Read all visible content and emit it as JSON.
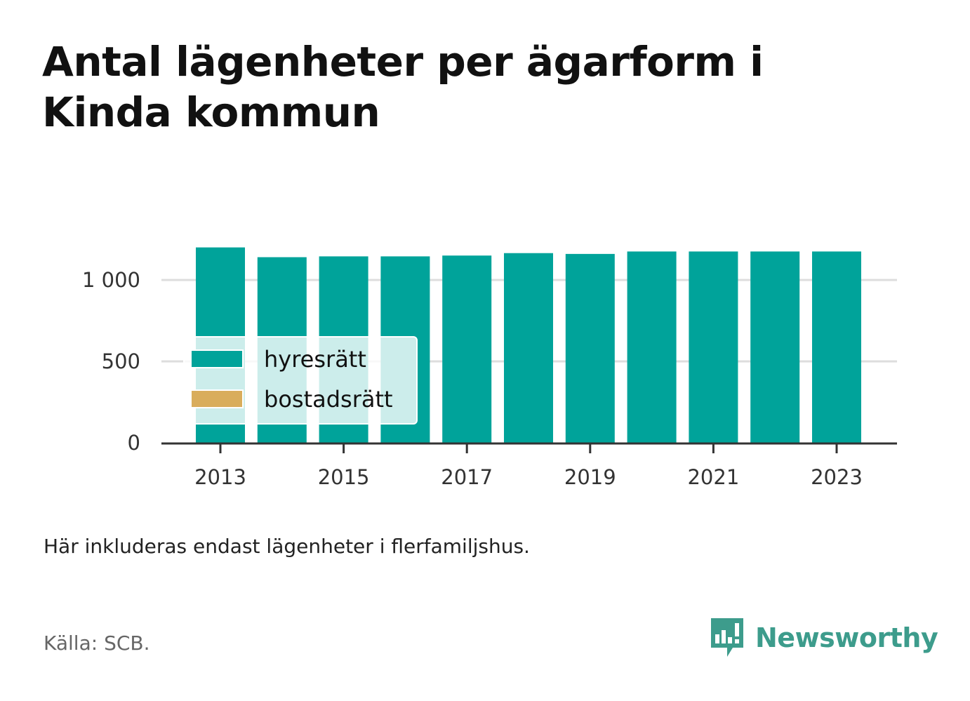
{
  "title": "Antal lägenheter per ägarform i Kinda kommun",
  "note": "Här inkluderas endast lägenheter i flerfamiljshus.",
  "source": "Källa: SCB.",
  "brand": {
    "name": "Newsworthy",
    "icon": "bar-chart-speech-bubble-icon"
  },
  "colors": {
    "hyresratt": "#00a39a",
    "bostadsratt": "#d9ad5c",
    "grid": "#dddddd",
    "axis": "#333333"
  },
  "chart_data": {
    "type": "bar",
    "stacked": true,
    "x": [
      2013,
      2014,
      2015,
      2016,
      2017,
      2018,
      2019,
      2020,
      2021,
      2022,
      2023
    ],
    "x_tick_labels": [
      "2013",
      "2015",
      "2017",
      "2019",
      "2021",
      "2023"
    ],
    "y_tick_values": [
      0,
      500,
      1000
    ],
    "y_tick_labels": [
      "0",
      "500",
      "1 000"
    ],
    "ylim": [
      0,
      1250
    ],
    "grid": true,
    "legend_position": "bottom-left",
    "series": [
      {
        "name": "hyresrätt",
        "color": "#00a39a",
        "values": [
          1200,
          1140,
          1145,
          1145,
          1150,
          1165,
          1160,
          1175,
          1175,
          1175,
          1175
        ]
      },
      {
        "name": "bostadsrätt",
        "color": "#d9ad5c",
        "values": [
          0,
          0,
          0,
          0,
          0,
          0,
          0,
          0,
          0,
          0,
          0
        ]
      }
    ]
  }
}
